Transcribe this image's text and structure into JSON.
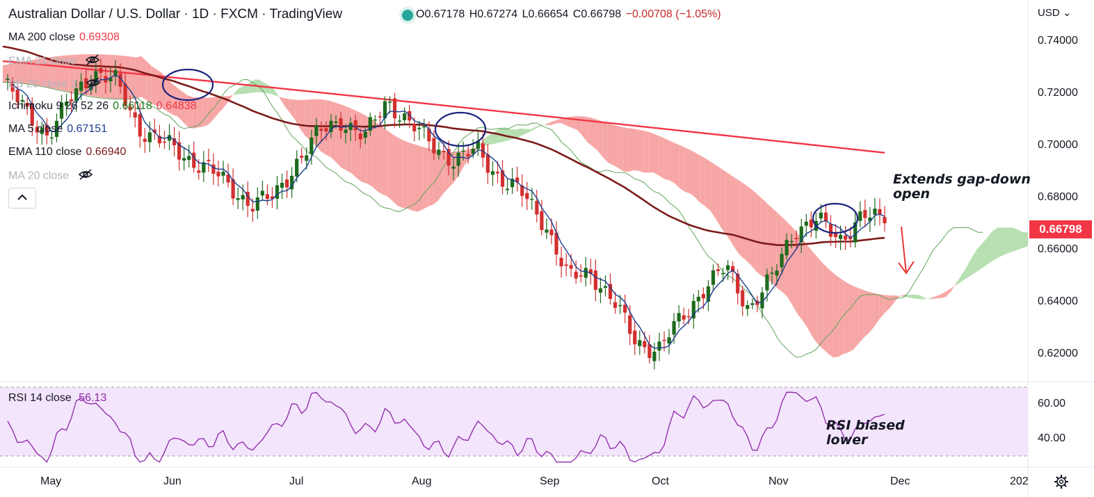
{
  "header": {
    "title": "Australian Dollar / U.S. Dollar · 1D · FXCM · TradingView",
    "ohlc": {
      "open": "O0.67178",
      "high": "H0.67274",
      "low": "L0.66654",
      "close": "C0.66798",
      "change": "−0.00708 (−1.05%)"
    }
  },
  "indicators": [
    {
      "label": "MA 200 close",
      "value": "0.69308",
      "value_color": "#f23645",
      "visible": true
    },
    {
      "label": "EMA 21 close",
      "value": "",
      "visible": false
    },
    {
      "label": "BB 20 close 2",
      "value": "",
      "visible": false
    },
    {
      "label": "Ichimoku 9 26 52 26",
      "value": "0.66118",
      "value2": "0.64838",
      "value_color": "#1b7a1b",
      "value2_color": "#f23645",
      "visible": true
    },
    {
      "label": "MA 5 close",
      "value": "0.67151",
      "value_color": "#1a3d8f",
      "visible": true
    },
    {
      "label": "EMA 110 close",
      "value": "0.66940",
      "value_color": "#7b1a1a",
      "visible": true
    },
    {
      "label": "MA 20 close",
      "value": "",
      "visible": false
    }
  ],
  "price_axis": {
    "currency": "USD",
    "ticks": [
      "0.74000",
      "0.72000",
      "0.70000",
      "0.68000",
      "0.66000",
      "0.64000",
      "0.62000"
    ],
    "last_price": "0.66798"
  },
  "rsi": {
    "label": "RSI 14 close",
    "value": "56.13",
    "ticks": [
      "60.00",
      "40.00"
    ]
  },
  "time_axis": {
    "months": [
      "May",
      "Jun",
      "Jul",
      "Aug",
      "Sep",
      "Oct",
      "Nov",
      "Dec",
      "202"
    ]
  },
  "annotations": {
    "price_note_line1": "Extends gap-down",
    "price_note_line2": "open",
    "rsi_note_line1": "RSI biased",
    "rsi_note_line2": "lower"
  },
  "colors": {
    "up": "#1e6b1e",
    "down": "#d32f2f",
    "ma200": "#f23645",
    "ema110": "#7b1a1a",
    "ma5": "#1a3d8f",
    "kumo_bear": "#f7a6a6",
    "kumo_bull": "#b7dfb1",
    "rsi_line": "#8e24aa",
    "rsi_band": "#f3e5fb",
    "circle": "#1a237e"
  },
  "chart_data": {
    "type": "candlestick",
    "title": "Australian Dollar / U.S. Dollar · 1D · FXCM · TradingView",
    "ylim": [
      0.612,
      0.746
    ],
    "x": [
      "May",
      "Jun",
      "Jul",
      "Aug",
      "Sep",
      "Oct",
      "Nov",
      "Dec"
    ],
    "close_path": [
      0.718,
      0.708,
      0.699,
      0.712,
      0.722,
      0.718,
      0.702,
      0.697,
      0.692,
      0.688,
      0.681,
      0.675,
      0.677,
      0.69,
      0.7,
      0.705,
      0.698,
      0.712,
      0.703,
      0.696,
      0.69,
      0.694,
      0.684,
      0.678,
      0.668,
      0.648,
      0.651,
      0.64,
      0.626,
      0.623,
      0.634,
      0.645,
      0.652,
      0.638,
      0.648,
      0.666,
      0.669,
      0.662,
      0.671,
      0.668
    ],
    "series": [
      {
        "name": "MA 200 close",
        "last": 0.69308
      },
      {
        "name": "EMA 110 close",
        "last": 0.6694
      },
      {
        "name": "MA 5 close",
        "last": 0.67151
      },
      {
        "name": "Ichimoku 9 26 52 26",
        "last": 0.66118
      }
    ],
    "rsi": {
      "name": "RSI 14 close",
      "last": 56.13,
      "ylim": [
        25,
        72
      ]
    }
  }
}
